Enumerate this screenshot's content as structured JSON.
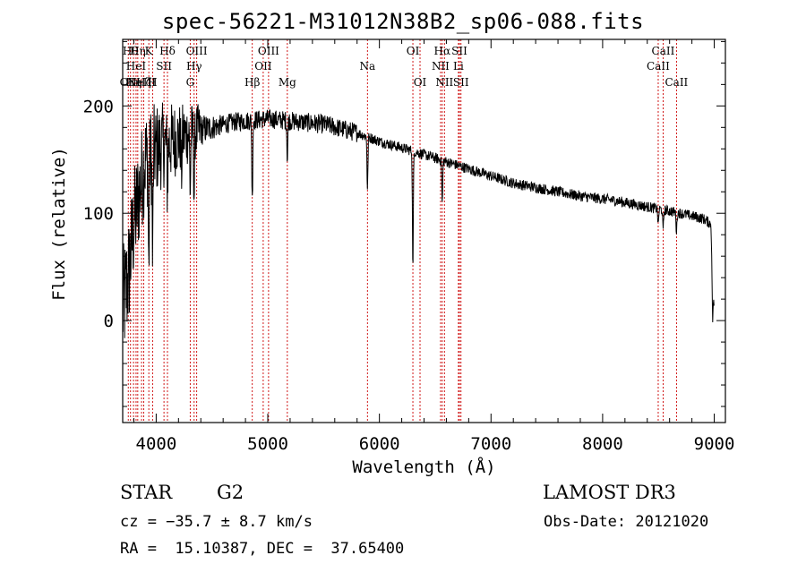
{
  "chart_data": {
    "type": "line",
    "title": "spec-56221-M31012N38B2_sp06-088.fits",
    "xlabel": "Wavelength (Å)",
    "ylabel": "Flux (relative)",
    "xlim": [
      3700,
      9100
    ],
    "ylim": [
      -95,
      262
    ],
    "xticks": [
      4000,
      5000,
      6000,
      7000,
      8000,
      9000
    ],
    "yticks": [
      0,
      100,
      200
    ],
    "continuum": [
      {
        "x": 3700,
        "y": 10
      },
      {
        "x": 3750,
        "y": 40
      },
      {
        "x": 3800,
        "y": 90
      },
      {
        "x": 3900,
        "y": 150
      },
      {
        "x": 4000,
        "y": 160
      },
      {
        "x": 4100,
        "y": 165
      },
      {
        "x": 4300,
        "y": 175
      },
      {
        "x": 4500,
        "y": 180
      },
      {
        "x": 4700,
        "y": 185
      },
      {
        "x": 5000,
        "y": 188
      },
      {
        "x": 5200,
        "y": 186
      },
      {
        "x": 5500,
        "y": 183
      },
      {
        "x": 5800,
        "y": 175
      },
      {
        "x": 6000,
        "y": 167
      },
      {
        "x": 6300,
        "y": 158
      },
      {
        "x": 6600,
        "y": 148
      },
      {
        "x": 6900,
        "y": 138
      },
      {
        "x": 7200,
        "y": 128
      },
      {
        "x": 7500,
        "y": 122
      },
      {
        "x": 7800,
        "y": 116
      },
      {
        "x": 8100,
        "y": 112
      },
      {
        "x": 8400,
        "y": 106
      },
      {
        "x": 8700,
        "y": 100
      },
      {
        "x": 8900,
        "y": 95
      },
      {
        "x": 8970,
        "y": 90
      },
      {
        "x": 9000,
        "y": 5
      }
    ],
    "absorption_features": [
      {
        "x": 3934,
        "depth": 110
      },
      {
        "x": 3968,
        "depth": 100
      },
      {
        "x": 4101,
        "depth": 40
      },
      {
        "x": 4226,
        "depth": 35
      },
      {
        "x": 4305,
        "depth": 55
      },
      {
        "x": 4340,
        "depth": 60
      },
      {
        "x": 4861,
        "depth": 75
      },
      {
        "x": 5175,
        "depth": 35
      },
      {
        "x": 5893,
        "depth": 50
      },
      {
        "x": 6300,
        "depth": 110
      },
      {
        "x": 6563,
        "depth": 40
      },
      {
        "x": 8498,
        "depth": 15
      },
      {
        "x": 8542,
        "depth": 20
      },
      {
        "x": 8662,
        "depth": 18
      },
      {
        "x": 8985,
        "depth": 45
      }
    ],
    "noise_amplitude_blue": 30,
    "noise_amplitude_red": 3,
    "line_markers": [
      {
        "x": 3750,
        "label": "OII",
        "row": 3
      },
      {
        "x": 3770,
        "label": "Hθ",
        "row": 1
      },
      {
        "x": 3797,
        "label": "Hη",
        "row": 3
      },
      {
        "x": 3820,
        "label": "HeI",
        "row": 2
      },
      {
        "x": 3835,
        "label": "Hη",
        "row": 1
      },
      {
        "x": 3869,
        "label": "NeIII",
        "row": 3
      },
      {
        "x": 3889,
        "label": "Hζ",
        "row": 3
      },
      {
        "x": 3934,
        "label": "K",
        "row": 1
      },
      {
        "x": 3968,
        "label": "H",
        "row": 3
      },
      {
        "x": 4070,
        "label": "SII",
        "row": 2
      },
      {
        "x": 4101,
        "label": "Hδ",
        "row": 1
      },
      {
        "x": 4305,
        "label": "G",
        "row": 3
      },
      {
        "x": 4340,
        "label": "Hγ",
        "row": 2
      },
      {
        "x": 4363,
        "label": "OIII",
        "row": 1
      },
      {
        "x": 4861,
        "label": "Hβ",
        "row": 3
      },
      {
        "x": 4959,
        "label": "OII",
        "row": 2
      },
      {
        "x": 5007,
        "label": "OIII",
        "row": 1
      },
      {
        "x": 5175,
        "label": "Mg",
        "row": 3
      },
      {
        "x": 5893,
        "label": "Na",
        "row": 2
      },
      {
        "x": 6300,
        "label": "OI",
        "row": 1
      },
      {
        "x": 6364,
        "label": "OI",
        "row": 3
      },
      {
        "x": 6548,
        "label": "NII",
        "row": 2
      },
      {
        "x": 6563,
        "label": "Hα",
        "row": 1
      },
      {
        "x": 6583,
        "label": "NII",
        "row": 3
      },
      {
        "x": 6708,
        "label": "Li",
        "row": 2
      },
      {
        "x": 6717,
        "label": "SII",
        "row": 1
      },
      {
        "x": 6731,
        "label": "SII",
        "row": 3
      },
      {
        "x": 8498,
        "label": "CaII",
        "row": 2
      },
      {
        "x": 8542,
        "label": "CaII",
        "row": 1
      },
      {
        "x": 8662,
        "label": "CaII",
        "row": 3
      }
    ]
  },
  "info": {
    "object_class": "STAR",
    "subclass": "G2",
    "survey": "LAMOST DR3",
    "cz": "cz = −35.7 ± 8.7 km/s",
    "obs_date": "Obs-Date: 20121020",
    "coords": "RA =  15.10387, DEC =  37.65400"
  },
  "colors": {
    "spectrum": "#000000",
    "marker": "#cc0000",
    "axes": "#000000"
  }
}
